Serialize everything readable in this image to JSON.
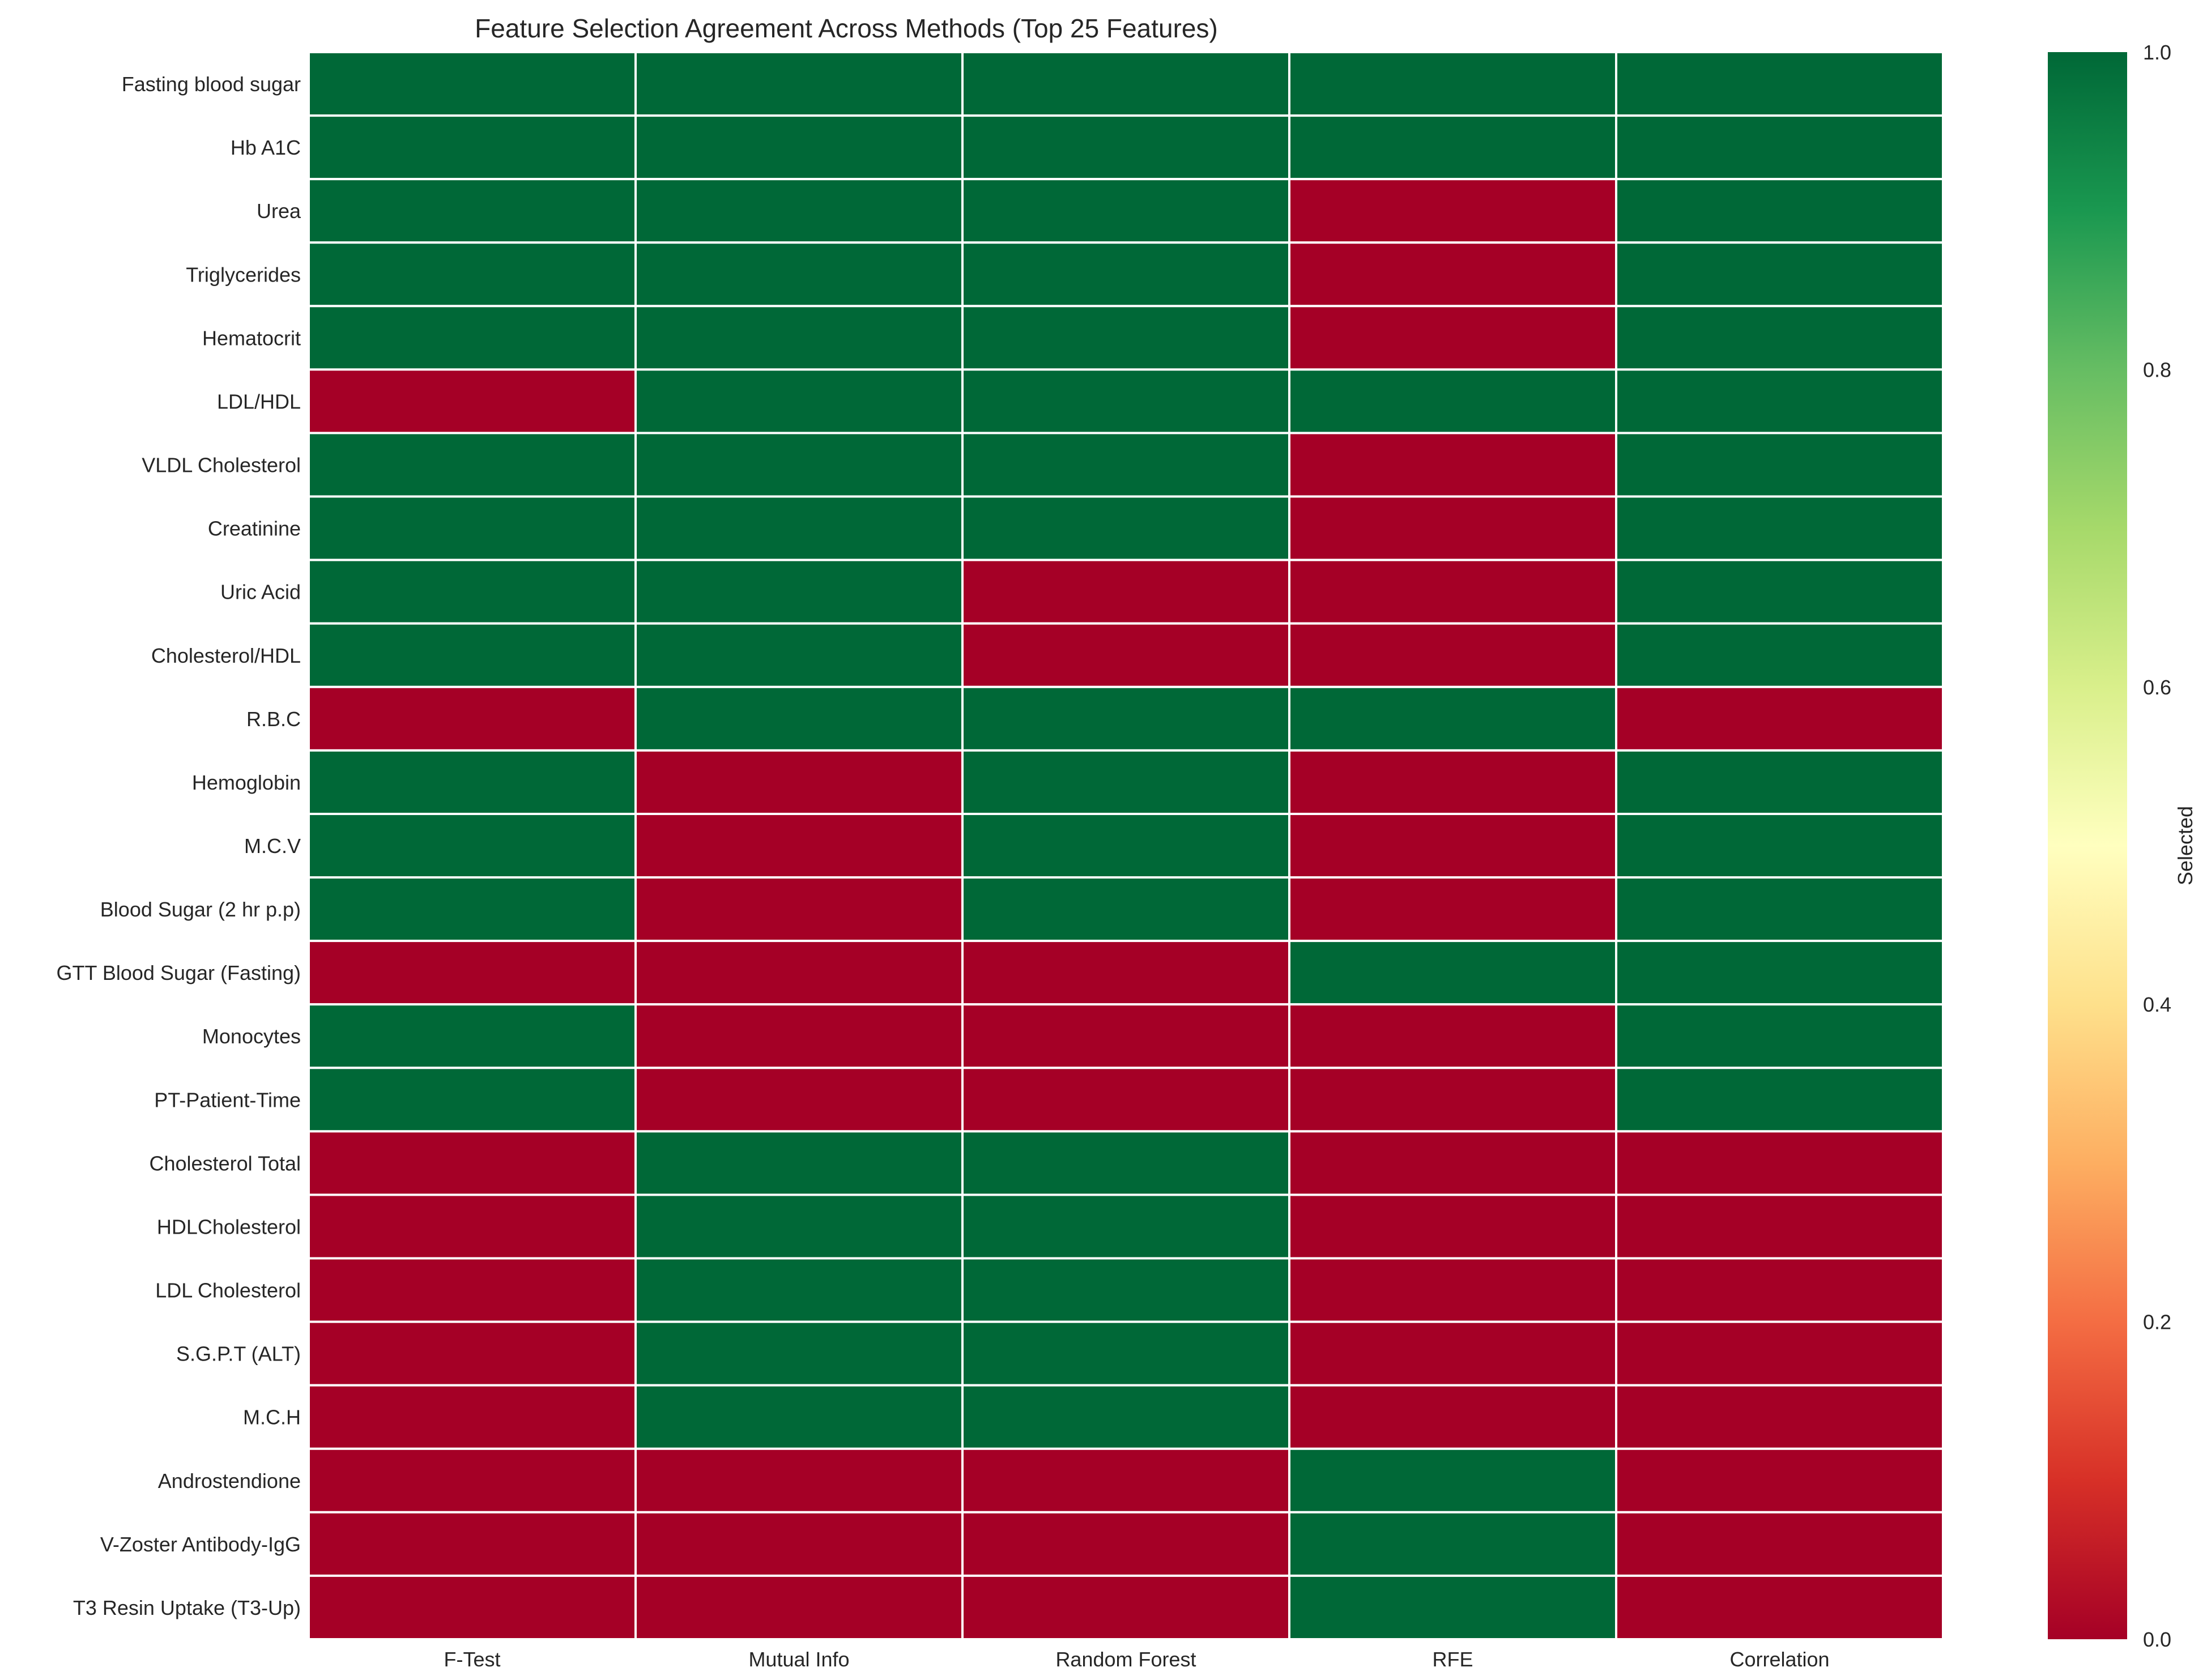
{
  "chart_data": {
    "type": "heatmap",
    "title": "Feature Selection Agreement Across Methods (Top 25 Features)",
    "x_categories": [
      "F-Test",
      "Mutual Info",
      "Random Forest",
      "RFE",
      "Correlation"
    ],
    "y_categories": [
      "Fasting blood sugar",
      "Hb A1C",
      "Urea",
      "Triglycerides",
      "Hematocrit",
      "LDL/HDL",
      "VLDL Cholesterol",
      "Creatinine",
      "Uric Acid",
      "Cholesterol/HDL",
      "R.B.C",
      "Hemoglobin",
      "M.C.V",
      "Blood Sugar (2 hr p.p)",
      "GTT Blood Sugar (Fasting)",
      "Monocytes",
      "PT-Patient-Time",
      "Cholesterol Total",
      "HDLCholesterol",
      "LDL Cholesterol",
      "S.G.P.T (ALT)",
      "M.C.H",
      "Androstendione",
      "V-Zoster Antibody-IgG",
      "T3 Resin Uptake (T3-Up)"
    ],
    "values": [
      [
        1,
        1,
        1,
        1,
        1
      ],
      [
        1,
        1,
        1,
        1,
        1
      ],
      [
        1,
        1,
        1,
        0,
        1
      ],
      [
        1,
        1,
        1,
        0,
        1
      ],
      [
        1,
        1,
        1,
        0,
        1
      ],
      [
        0,
        1,
        1,
        1,
        1
      ],
      [
        1,
        1,
        1,
        0,
        1
      ],
      [
        1,
        1,
        1,
        0,
        1
      ],
      [
        1,
        1,
        0,
        0,
        1
      ],
      [
        1,
        1,
        0,
        0,
        1
      ],
      [
        0,
        1,
        1,
        1,
        0
      ],
      [
        1,
        0,
        1,
        0,
        1
      ],
      [
        1,
        0,
        1,
        0,
        1
      ],
      [
        1,
        0,
        1,
        0,
        1
      ],
      [
        0,
        0,
        0,
        1,
        1
      ],
      [
        1,
        0,
        0,
        0,
        1
      ],
      [
        1,
        0,
        0,
        0,
        1
      ],
      [
        0,
        1,
        1,
        0,
        0
      ],
      [
        0,
        1,
        1,
        0,
        0
      ],
      [
        0,
        1,
        1,
        0,
        0
      ],
      [
        0,
        1,
        1,
        0,
        0
      ],
      [
        0,
        1,
        1,
        0,
        0
      ],
      [
        0,
        0,
        0,
        1,
        0
      ],
      [
        0,
        0,
        0,
        1,
        0
      ],
      [
        0,
        0,
        0,
        1,
        0
      ]
    ],
    "colorbar": {
      "label": "Selected",
      "range": [
        0.0,
        1.0
      ],
      "ticks": [
        "0.0",
        "0.2",
        "0.4",
        "0.6",
        "0.8",
        "1.0"
      ],
      "colormap": "RdYlGn",
      "colors": [
        "#a50026",
        "#d73027",
        "#f46d43",
        "#fdae61",
        "#fee08b",
        "#ffffbf",
        "#d9ef8b",
        "#a6d96a",
        "#66bd63",
        "#1a9850",
        "#006837"
      ]
    },
    "cell_colors": {
      "selected": "#006837",
      "not_selected": "#a50026"
    },
    "grid_line_color": "#ffffff"
  }
}
